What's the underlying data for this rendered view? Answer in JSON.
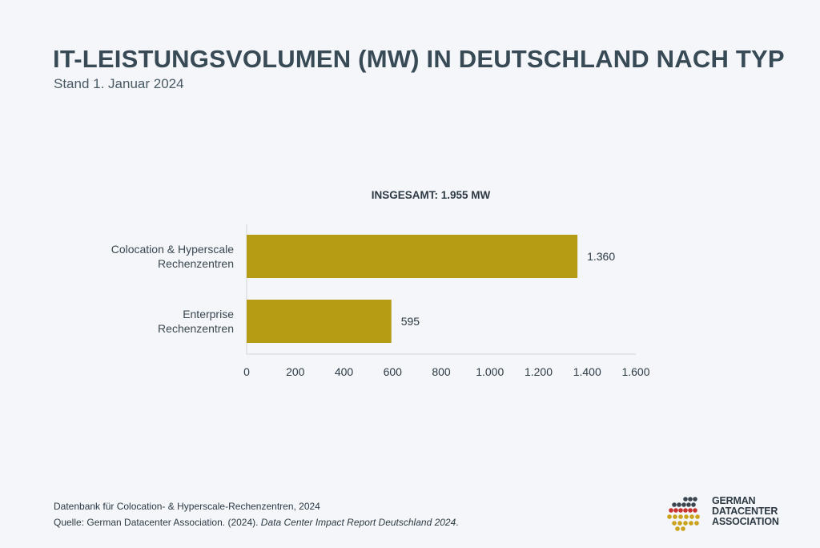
{
  "header": {
    "title": "IT-LEISTUNGSVOLUMEN (MW) IN DEUTSCHLAND NACH TYP",
    "subtitle": "Stand 1. Januar 2024"
  },
  "chart_data": {
    "type": "bar",
    "orientation": "horizontal",
    "annotation": "INSGESAMT: 1.955 MW",
    "categories": [
      [
        "Colocation & Hyperscale",
        "Rechenzentren"
      ],
      [
        "Enterprise",
        "Rechenzentren"
      ]
    ],
    "values": [
      1360,
      595
    ],
    "value_labels": [
      "1.360",
      "595"
    ],
    "xlim": [
      0,
      1600
    ],
    "xticks": [
      0,
      200,
      400,
      600,
      800,
      1000,
      1200,
      1400,
      1600
    ],
    "xtick_labels": [
      "0",
      "200",
      "400",
      "600",
      "800",
      "1.000",
      "1.200",
      "1.400",
      "1.600"
    ],
    "grid": false,
    "bar_color": "#b59c14"
  },
  "footer": {
    "note": "Datenbank für Colocation- & Hyperscale-Rechenzentren, 2024",
    "source_prefix": "Quelle: German Datacenter Association. (2024). ",
    "source_title": "Data Center Impact Report Deutschland 2024",
    "source_suffix": "."
  },
  "logo": {
    "line1": "GERMAN",
    "line2": "DATACENTER",
    "line3": "ASSOCIATION"
  }
}
